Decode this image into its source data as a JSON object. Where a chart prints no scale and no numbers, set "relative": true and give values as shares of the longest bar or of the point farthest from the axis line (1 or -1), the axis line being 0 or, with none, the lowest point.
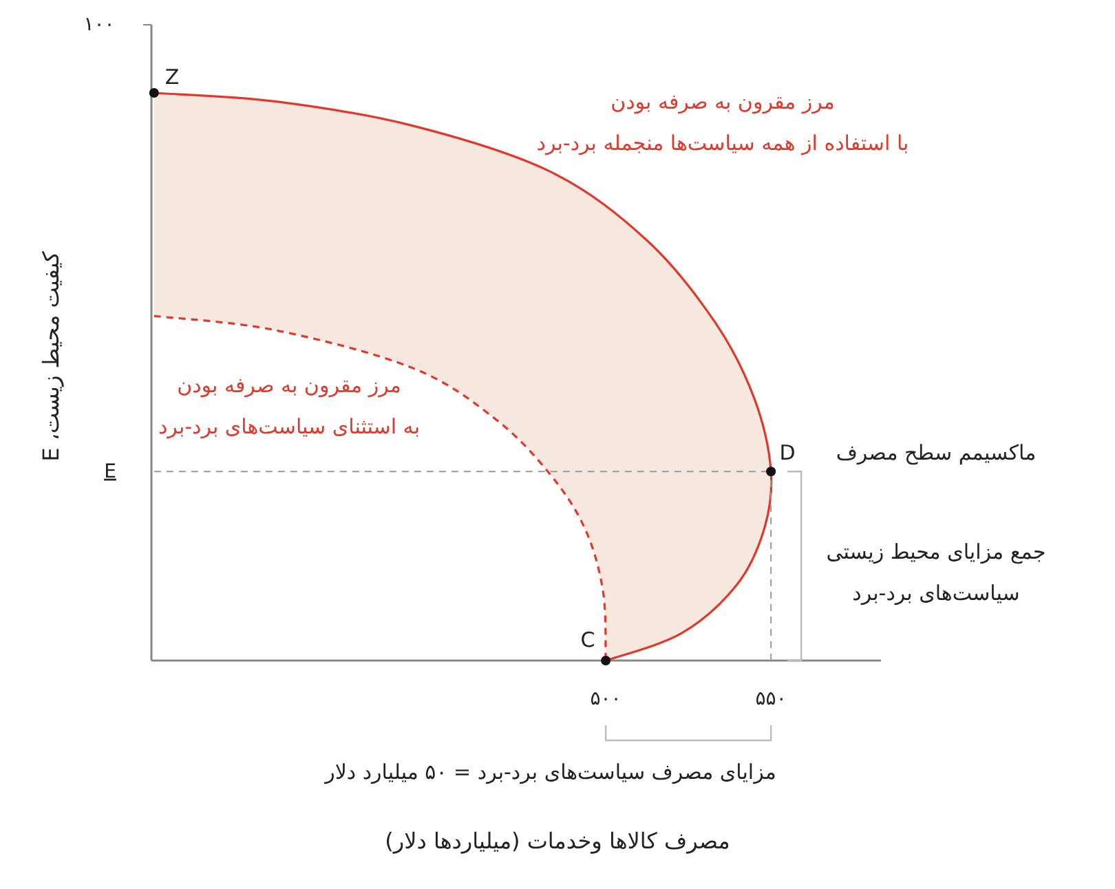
{
  "chart_data": {
    "type": "line",
    "relative": true,
    "ylabel": "کیفیت محیط زیست، E",
    "xlim": [
      362.5,
      583.3
    ],
    "xticks": [
      {
        "value": 500,
        "label": "۵۰۰"
      },
      {
        "value": 550,
        "label": "۵۵۰"
      }
    ],
    "series": [
      {
        "type": "line",
        "color": "#e0392b",
        "line_style": "solid",
        "x": [
          363.3,
          400,
          441.7,
          483.3,
          512.5,
          533.3,
          545,
          550,
          547.9,
          539.6,
          522.9,
          500
        ],
        "values": [
          1,
          0.985,
          0.942,
          0.861,
          0.74,
          0.594,
          0.461,
          0.333,
          0.231,
          0.133,
          0.048,
          0
        ]
      },
      {
        "type": "line",
        "color": "#e0392b",
        "line_style": "dashed",
        "x": [
          363.3,
          400,
          441.7,
          466.7,
          483.3,
          493.8,
          499.2,
          500
        ],
        "values": [
          0.607,
          0.582,
          0.515,
          0.425,
          0.327,
          0.231,
          0.121,
          0
        ]
      },
      {
        "type": "line",
        "color": "#999999",
        "line_style": "dashed",
        "x": [
          363.3,
          550
        ],
        "values": [
          0.333,
          0.333
        ]
      },
      {
        "type": "line",
        "color": "#999999",
        "line_style": "dashed",
        "x": [
          550,
          550
        ],
        "values": [
          0,
          0.333
        ]
      },
      {
        "type": "scatter",
        "color": "#111111",
        "marker": "circle",
        "x": [
          363.3,
          550,
          500
        ],
        "values": [
          1,
          0.333,
          0
        ]
      }
    ],
    "annotations": [
      "مرز مقرون به صرفه بودن\nبا استفاده از همه سیاست‌ها منجمله برد-برد",
      "مرز مقرون به صرفه بودن\nبه استثنای سیاست‌های برد-برد",
      "Z",
      "D",
      "C",
      "ماکسیمم سطح مصرف",
      "جمع مزایای محیط زیستی\nسیاست‌های برد-برد",
      "مزایای مصرف سیاست‌های برد-برد = ۵۰ میلیارد دلار",
      "۱۰۰",
      "E",
      "مصرف کالاها وخدمات (میلیاردها دلار)"
    ]
  }
}
